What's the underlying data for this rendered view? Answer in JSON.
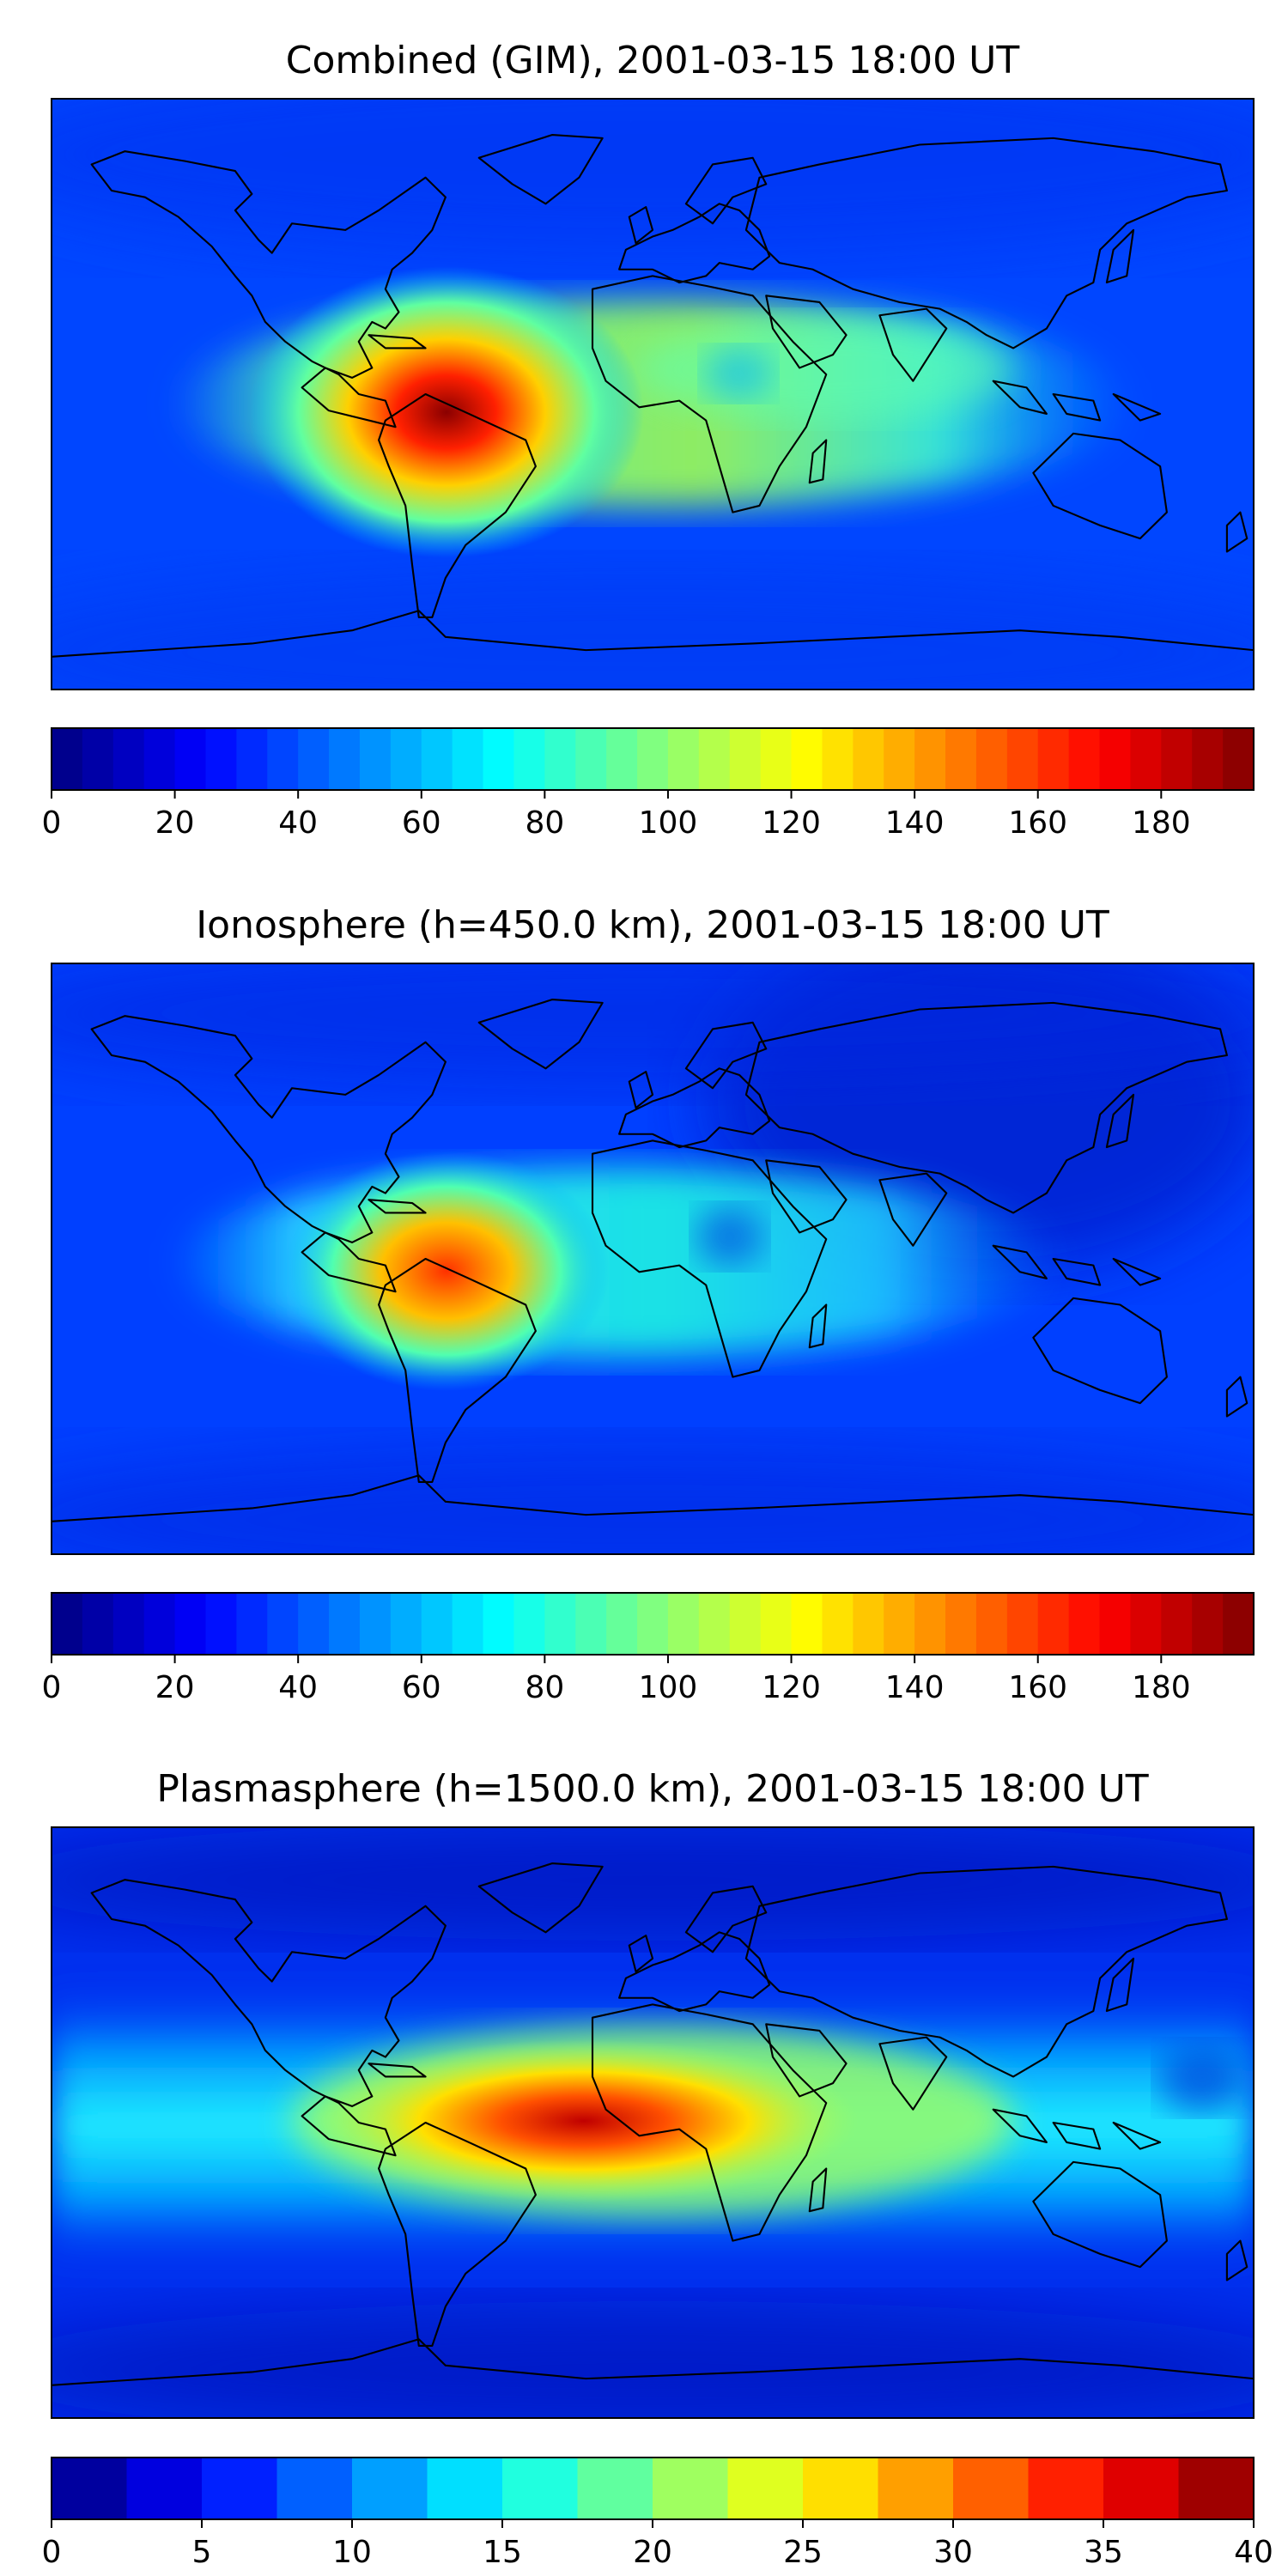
{
  "chart_data": [
    {
      "type": "heatmap",
      "title": "Combined (GIM), 2001-03-15 18:00 UT",
      "xlabel": "",
      "ylabel": "",
      "colorbar": {
        "range": [
          0,
          195
        ],
        "levels": 39,
        "colormap": "jet",
        "ticks": [
          "0",
          "20",
          "40",
          "60",
          "80",
          "100",
          "120",
          "140",
          "160",
          "180"
        ]
      },
      "features": [
        {
          "name": "equatorial-anomaly-band",
          "lon": [
            -120,
            120
          ],
          "lat": 0,
          "value": 110
        },
        {
          "name": "south-america-maximum",
          "lon": -52,
          "lat": -5,
          "value": 190
        },
        {
          "name": "background",
          "value": 35
        }
      ]
    },
    {
      "type": "heatmap",
      "title": "Ionosphere  (h=450.0 km), 2001-03-15 18:00 UT",
      "xlabel": "",
      "ylabel": "",
      "colorbar": {
        "range": [
          0,
          195
        ],
        "levels": 39,
        "colormap": "jet",
        "ticks": [
          "0",
          "20",
          "40",
          "60",
          "80",
          "100",
          "120",
          "140",
          "160",
          "180"
        ]
      },
      "features": [
        {
          "name": "equatorial-anomaly-band",
          "lon": [
            -120,
            100
          ],
          "lat": 0,
          "value": 85
        },
        {
          "name": "south-america-maximum",
          "lon": -52,
          "lat": -5,
          "value": 160
        },
        {
          "name": "background",
          "value": 25
        }
      ]
    },
    {
      "type": "heatmap",
      "title": "Plasmasphere (h=1500.0 km), 2001-03-15 18:00 UT",
      "xlabel": "",
      "ylabel": "",
      "colorbar": {
        "range": [
          0,
          40
        ],
        "levels": 16,
        "colormap": "jet",
        "ticks": [
          "0",
          "5",
          "10",
          "15",
          "20",
          "25",
          "30",
          "35",
          "40"
        ]
      },
      "features": [
        {
          "name": "tropical-band",
          "lon": [
            -180,
            180
          ],
          "lat": 5,
          "value": 15
        },
        {
          "name": "atlantic-africa-maximum",
          "lon": -30,
          "lat": 8,
          "value": 37
        },
        {
          "name": "high-latitude-minimum",
          "value": 3
        }
      ]
    }
  ]
}
